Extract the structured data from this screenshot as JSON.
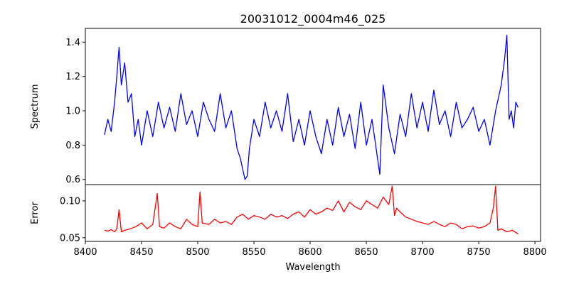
{
  "chart_data": [
    {
      "type": "line",
      "panel": "top",
      "title": "20031012_0004m46_025",
      "xlabel": "",
      "ylabel": "Spectrum",
      "xlim": [
        8400,
        8805
      ],
      "ylim": [
        0.57,
        1.48
      ],
      "yticks": [
        0.6,
        0.8,
        1.0,
        1.2,
        1.4
      ],
      "ytick_labels": [
        "0.6",
        "0.8",
        "1.0",
        "1.2",
        "1.4"
      ],
      "grid": false,
      "series": [
        {
          "color": "#0000ff",
          "x": [
            8417,
            8420,
            8423,
            8426,
            8428,
            8430,
            8432,
            8435,
            8438,
            8441,
            8444,
            8447,
            8450,
            8455,
            8460,
            8465,
            8470,
            8475,
            8480,
            8485,
            8490,
            8495,
            8500,
            8505,
            8510,
            8515,
            8520,
            8525,
            8530,
            8535,
            8538,
            8540,
            8542,
            8544,
            8546,
            8550,
            8555,
            8560,
            8565,
            8570,
            8575,
            8580,
            8585,
            8590,
            8595,
            8600,
            8605,
            8610,
            8615,
            8620,
            8625,
            8630,
            8635,
            8640,
            8645,
            8650,
            8655,
            8660,
            8662,
            8665,
            8670,
            8675,
            8680,
            8685,
            8690,
            8695,
            8700,
            8705,
            8710,
            8715,
            8720,
            8725,
            8730,
            8735,
            8740,
            8745,
            8750,
            8755,
            8760,
            8765,
            8770,
            8773,
            8775,
            8777,
            8779,
            8781,
            8783,
            8785
          ],
          "y": [
            0.86,
            0.95,
            0.88,
            1.05,
            1.2,
            1.37,
            1.15,
            1.28,
            1.05,
            1.1,
            0.85,
            0.95,
            0.8,
            1.0,
            0.85,
            1.05,
            0.9,
            1.02,
            0.88,
            1.1,
            0.92,
            1.0,
            0.85,
            1.05,
            0.95,
            0.88,
            1.1,
            0.9,
            1.0,
            0.78,
            0.72,
            0.66,
            0.6,
            0.62,
            0.78,
            0.95,
            0.85,
            1.05,
            0.9,
            1.0,
            0.88,
            1.1,
            0.82,
            0.95,
            0.8,
            1.0,
            0.85,
            0.75,
            0.95,
            0.8,
            1.02,
            0.85,
            0.98,
            0.78,
            1.05,
            0.8,
            0.95,
            0.72,
            0.63,
            1.15,
            0.9,
            0.75,
            0.98,
            0.85,
            1.1,
            0.9,
            1.05,
            0.88,
            1.12,
            0.92,
            1.0,
            0.85,
            1.05,
            0.9,
            0.95,
            1.02,
            0.88,
            0.95,
            0.8,
            1.0,
            1.15,
            1.3,
            1.44,
            0.95,
            1.0,
            0.9,
            1.05,
            1.02
          ]
        }
      ]
    },
    {
      "type": "line",
      "panel": "bottom",
      "title": "",
      "xlabel": "Wavelength",
      "ylabel": "Error",
      "xlim": [
        8400,
        8805
      ],
      "ylim": [
        0.045,
        0.122
      ],
      "xticks": [
        8400,
        8450,
        8500,
        8550,
        8600,
        8650,
        8700,
        8750,
        8800
      ],
      "xtick_labels": [
        "8400",
        "8450",
        "8500",
        "8550",
        "8600",
        "8650",
        "8700",
        "8750",
        "8800"
      ],
      "yticks": [
        0.05,
        0.1
      ],
      "ytick_labels": [
        "0.05",
        "0.10"
      ],
      "grid": false,
      "series": [
        {
          "color": "#ff0000",
          "x": [
            8417,
            8420,
            8423,
            8426,
            8428,
            8430,
            8432,
            8435,
            8440,
            8445,
            8450,
            8455,
            8460,
            8464,
            8466,
            8470,
            8475,
            8480,
            8485,
            8490,
            8495,
            8500,
            8502,
            8504,
            8510,
            8515,
            8520,
            8525,
            8530,
            8535,
            8540,
            8545,
            8550,
            8555,
            8560,
            8565,
            8570,
            8575,
            8580,
            8585,
            8590,
            8595,
            8600,
            8605,
            8610,
            8615,
            8620,
            8625,
            8630,
            8635,
            8640,
            8645,
            8650,
            8655,
            8660,
            8665,
            8670,
            8673,
            8675,
            8677,
            8680,
            8685,
            8690,
            8695,
            8700,
            8705,
            8710,
            8715,
            8720,
            8725,
            8730,
            8735,
            8740,
            8745,
            8750,
            8755,
            8760,
            8763,
            8765,
            8767,
            8770,
            8775,
            8780,
            8785
          ],
          "y": [
            0.06,
            0.059,
            0.061,
            0.058,
            0.062,
            0.088,
            0.058,
            0.06,
            0.062,
            0.065,
            0.07,
            0.062,
            0.068,
            0.11,
            0.065,
            0.063,
            0.07,
            0.065,
            0.062,
            0.075,
            0.068,
            0.065,
            0.112,
            0.07,
            0.068,
            0.075,
            0.07,
            0.072,
            0.068,
            0.078,
            0.082,
            0.075,
            0.08,
            0.078,
            0.075,
            0.082,
            0.078,
            0.08,
            0.076,
            0.082,
            0.085,
            0.078,
            0.088,
            0.082,
            0.085,
            0.09,
            0.087,
            0.1,
            0.085,
            0.098,
            0.092,
            0.088,
            0.1,
            0.095,
            0.09,
            0.105,
            0.095,
            0.12,
            0.08,
            0.09,
            0.085,
            0.078,
            0.075,
            0.072,
            0.07,
            0.068,
            0.072,
            0.068,
            0.065,
            0.07,
            0.068,
            0.062,
            0.065,
            0.066,
            0.063,
            0.065,
            0.07,
            0.09,
            0.12,
            0.06,
            0.062,
            0.058,
            0.06,
            0.055
          ]
        }
      ]
    }
  ]
}
